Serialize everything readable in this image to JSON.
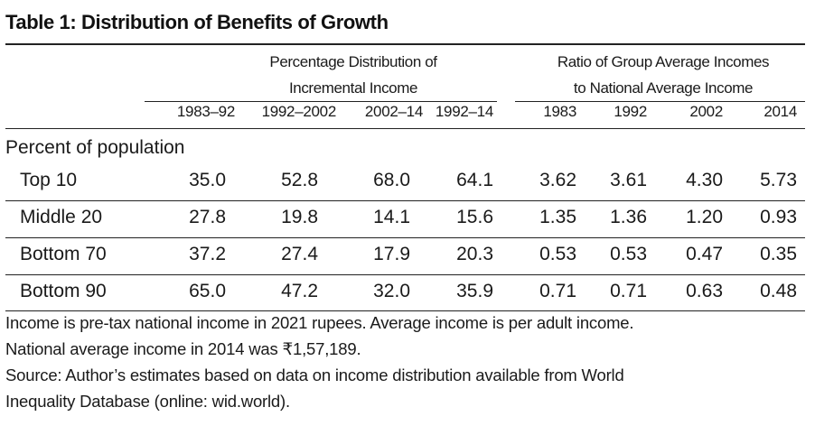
{
  "title": "Table 1: Distribution of Benefits of Growth",
  "group_headers": [
    {
      "lines": [
        "Percentage Distribution of",
        "Incremental Income"
      ]
    },
    {
      "lines": [
        "Ratio of Group Average Incomes",
        "to National Average Income"
      ]
    }
  ],
  "columns": [
    "1983–92",
    "1992–2002",
    "2002–14",
    "1992–14",
    "1983",
    "1992",
    "2002",
    "2014"
  ],
  "section_label": "Percent of population",
  "rows": [
    {
      "label": "Top 10",
      "values": [
        "35.0",
        "52.8",
        "68.0",
        "64.1",
        "3.62",
        "3.61",
        "4.30",
        "5.73"
      ]
    },
    {
      "label": "Middle 20",
      "values": [
        "27.8",
        "19.8",
        "14.1",
        "15.6",
        "1.35",
        "1.36",
        "1.20",
        "0.93"
      ]
    },
    {
      "label": "Bottom 70",
      "values": [
        "37.2",
        "27.4",
        "17.9",
        "20.3",
        "0.53",
        "0.53",
        "0.47",
        "0.35"
      ]
    },
    {
      "label": "Bottom 90",
      "values": [
        "65.0",
        "47.2",
        "32.0",
        "35.9",
        "0.71",
        "0.71",
        "0.63",
        "0.48"
      ]
    }
  ],
  "notes": [
    "Income is pre-tax national income in 2021 rupees. Average income is per adult income.",
    "National average income in 2014 was ₹1,57,189.",
    "Source: Author’s estimates based on data on income distribution available from World",
    "Inequality Database (online: wid.world)."
  ]
}
